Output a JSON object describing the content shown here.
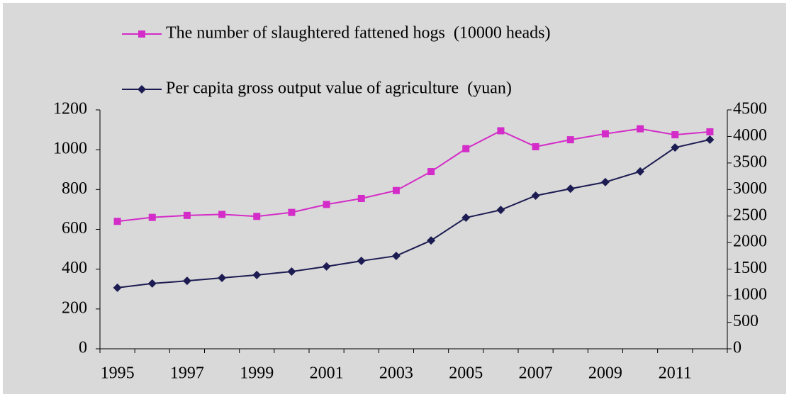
{
  "chart_data": {
    "type": "line",
    "categories": [
      "1995",
      null,
      "1997",
      null,
      "1999",
      null,
      "2001",
      null,
      "2003",
      null,
      "2005",
      null,
      "2007",
      null,
      "2009",
      null,
      "2011",
      null
    ],
    "series": [
      {
        "name": "The number of slaughtered fattened hogs  (10000 heads)",
        "color": "#d42cc8",
        "marker": "square",
        "axis": "y",
        "values": [
          640,
          660,
          670,
          675,
          665,
          685,
          725,
          755,
          795,
          890,
          1005,
          1095,
          1015,
          1050,
          1080,
          1105,
          1075,
          1090
        ]
      },
      {
        "name": "Per capita gross output value of agriculture  (yuan)",
        "color": "#1c1c52",
        "marker": "diamond",
        "axis": "y2",
        "values": [
          1150,
          1230,
          1280,
          1335,
          1390,
          1455,
          1550,
          1655,
          1750,
          2040,
          2470,
          2615,
          2885,
          3015,
          3140,
          3340,
          3790,
          3940
        ]
      }
    ],
    "ylim": [
      0,
      1200
    ],
    "yticks": [
      0,
      200,
      400,
      600,
      800,
      1000,
      1200
    ],
    "y2lim": [
      0,
      4500
    ],
    "y2ticks": [
      0,
      500,
      1000,
      1500,
      2000,
      2500,
      3000,
      3500,
      4000,
      4500
    ],
    "legend": "top",
    "grid": false
  }
}
